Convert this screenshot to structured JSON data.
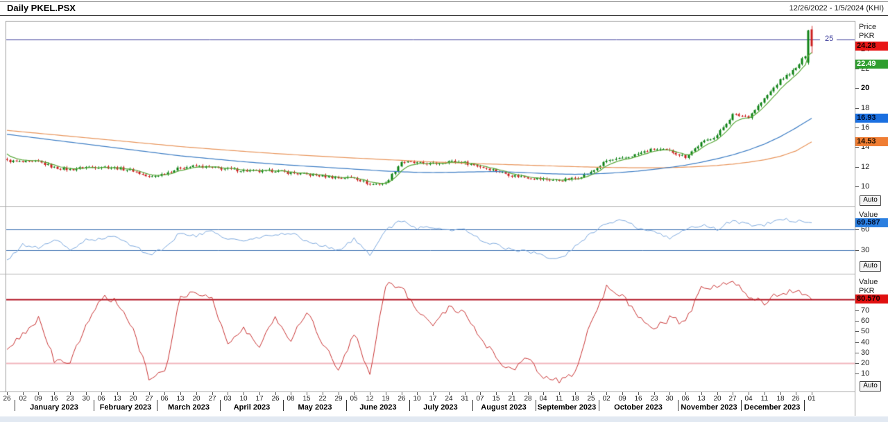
{
  "header": {
    "title": "Daily PKEL.PSX",
    "date_range": "12/26/2022 - 1/5/2024 (KHI)"
  },
  "ui": {
    "auto_label": "Auto"
  },
  "price_panel": {
    "axis_title_1": "Price",
    "axis_title_2": "PKR",
    "ticks": [
      24,
      22,
      20,
      18,
      16,
      14,
      12,
      10
    ],
    "bold_tick": 20,
    "badges": {
      "last": "24.28",
      "fast_ma": "22.49",
      "mid_ma": "16.93",
      "slow_ma": "14.53"
    },
    "hline_label": "25"
  },
  "rsi_panel": {
    "axis_title": "Value",
    "ticks": [
      60,
      30
    ],
    "badge": "69.587"
  },
  "osc_panel": {
    "axis_title_1": "Value",
    "axis_title_2": "PKR",
    "ticks": [
      70,
      60,
      50,
      40,
      30,
      20,
      10
    ],
    "badge": "80.570"
  },
  "x_axis": {
    "days": [
      "26",
      "02",
      "09",
      "16",
      "23",
      "30",
      "06",
      "13",
      "20",
      "27",
      "06",
      "13",
      "20",
      "27",
      "03",
      "10",
      "17",
      "26",
      "08",
      "15",
      "22",
      "29",
      "05",
      "12",
      "19",
      "26",
      "10",
      "17",
      "24",
      "31",
      "07",
      "15",
      "21",
      "28",
      "04",
      "11",
      "18",
      "25",
      "02",
      "09",
      "16",
      "23",
      "30",
      "06",
      "13",
      "20",
      "27",
      "04",
      "11",
      "18",
      "26",
      "01"
    ],
    "months": [
      {
        "label": "January 2023",
        "start": 1,
        "end": 5
      },
      {
        "label": "February 2023",
        "start": 6,
        "end": 9
      },
      {
        "label": "March 2023",
        "start": 10,
        "end": 13
      },
      {
        "label": "April 2023",
        "start": 14,
        "end": 17
      },
      {
        "label": "May 2023",
        "start": 18,
        "end": 21
      },
      {
        "label": "June 2023",
        "start": 22,
        "end": 25
      },
      {
        "label": "July 2023",
        "start": 26,
        "end": 29
      },
      {
        "label": "August 2023",
        "start": 30,
        "end": 33
      },
      {
        "label": "September 2023",
        "start": 34,
        "end": 37
      },
      {
        "label": "October 2023",
        "start": 38,
        "end": 42
      },
      {
        "label": "November 2023",
        "start": 43,
        "end": 46
      },
      {
        "label": "December 2023",
        "start": 47,
        "end": 50
      }
    ]
  },
  "colors": {
    "candle_up": "#0e8215",
    "candle_down": "#cd1f1f",
    "ma_fast": "#58a838",
    "ma_mid": "#3b7cc4",
    "ma_slow": "#e8945a",
    "annotation_line": "#3a3a99",
    "rsi_line": "#7aa7dd",
    "rsi_level": "#3a6fb0",
    "osc_line": "#c83232",
    "osc_level_high": "#b01020",
    "osc_level_low": "#f2b6bd",
    "badge_last_bg": "#e81515",
    "badge_fast_bg": "#2f9e2f",
    "badge_mid_bg": "#1a6fe0",
    "badge_slow_bg": "#ef7d33",
    "badge_rsi_bg": "#2b7fe0",
    "badge_osc_bg": "#e01010"
  },
  "chart_data": {
    "type": "candlestick",
    "title": "Daily PKEL.PSX",
    "timeframe": "Daily",
    "symbol": "PKEL.PSX",
    "date_range": "12/26/2022 - 1/5/2024",
    "bars_per_week": 5,
    "price_ylim": [
      7.9,
      26.9
    ],
    "annotation_level": 25,
    "last_close": 24.28,
    "weekly_labels": [
      "26",
      "02",
      "09",
      "16",
      "23",
      "30",
      "06",
      "13",
      "20",
      "27",
      "06",
      "13",
      "20",
      "27",
      "03",
      "10",
      "17",
      "26",
      "08",
      "15",
      "22",
      "29",
      "05",
      "12",
      "19",
      "26",
      "10",
      "17",
      "24",
      "31",
      "07",
      "15",
      "21",
      "28",
      "04",
      "11",
      "18",
      "25",
      "02",
      "09",
      "16",
      "23",
      "30",
      "06",
      "13",
      "20",
      "27",
      "04",
      "11",
      "18",
      "26",
      "01"
    ],
    "weekly_close": [
      12.6,
      12.45,
      12.5,
      11.9,
      11.7,
      11.95,
      12.0,
      11.85,
      11.6,
      10.9,
      11.3,
      11.9,
      12.05,
      11.9,
      11.75,
      11.6,
      11.5,
      11.6,
      11.35,
      11.2,
      11.05,
      10.85,
      10.9,
      10.2,
      10.3,
      12.5,
      12.35,
      12.3,
      12.55,
      12.4,
      12.0,
      11.6,
      11.1,
      10.9,
      10.7,
      10.6,
      10.8,
      11.4,
      12.6,
      12.8,
      13.3,
      13.8,
      13.6,
      13.0,
      14.4,
      15.2,
      17.3,
      17.1,
      18.9,
      20.8,
      22.0,
      24.28
    ],
    "ma_mid_weekly": [
      15.3,
      15.1,
      14.9,
      14.7,
      14.5,
      14.3,
      14.1,
      13.9,
      13.7,
      13.5,
      13.3,
      13.1,
      12.95,
      12.8,
      12.65,
      12.5,
      12.38,
      12.26,
      12.15,
      12.05,
      11.95,
      11.85,
      11.75,
      11.65,
      11.55,
      11.48,
      11.42,
      11.4,
      11.42,
      11.45,
      11.48,
      11.5,
      11.45,
      11.38,
      11.3,
      11.25,
      11.22,
      11.25,
      11.32,
      11.42,
      11.55,
      11.72,
      11.92,
      12.15,
      12.45,
      12.8,
      13.2,
      13.7,
      14.3,
      15.05,
      15.95,
      16.93
    ],
    "ma_slow_weekly": [
      15.7,
      15.55,
      15.4,
      15.25,
      15.1,
      14.95,
      14.8,
      14.65,
      14.5,
      14.35,
      14.2,
      14.05,
      13.92,
      13.8,
      13.68,
      13.56,
      13.45,
      13.34,
      13.24,
      13.14,
      13.05,
      12.96,
      12.88,
      12.8,
      12.72,
      12.64,
      12.56,
      12.48,
      12.42,
      12.36,
      12.3,
      12.25,
      12.2,
      12.15,
      12.1,
      12.05,
      12.0,
      11.96,
      11.92,
      11.9,
      11.88,
      11.88,
      11.9,
      11.95,
      12.02,
      12.12,
      12.26,
      12.45,
      12.7,
      13.05,
      13.6,
      14.53
    ],
    "ma_fast_last": 22.49,
    "ma_mid_last": 16.93,
    "ma_slow_last": 14.53,
    "final_candles": [
      {
        "o": 22.6,
        "h": 25.95,
        "l": 22.4,
        "c": 25.9
      },
      {
        "o": 26.0,
        "h": 26.35,
        "l": 23.55,
        "c": 24.28
      }
    ],
    "rsi": {
      "ylim": [
        0,
        100
      ],
      "levels": [
        60,
        30
      ],
      "last": 69.587,
      "weekly": [
        14,
        38,
        33,
        46,
        30,
        44,
        46,
        50,
        36,
        24,
        32,
        56,
        50,
        58,
        46,
        43,
        48,
        52,
        55,
        43,
        36,
        30,
        46,
        22,
        60,
        72,
        62,
        64,
        58,
        60,
        45,
        38,
        30,
        28,
        22,
        17,
        35,
        55,
        68,
        73,
        62,
        55,
        48,
        60,
        66,
        60,
        73,
        67,
        66,
        76,
        72,
        69.587
      ]
    },
    "oscillator": {
      "ylim": [
        0,
        100
      ],
      "levels": [
        80.57,
        20
      ],
      "last": 80.57,
      "weekly": [
        30,
        48,
        62,
        22,
        20,
        57,
        83,
        78,
        52,
        6,
        10,
        85,
        86,
        82,
        38,
        52,
        36,
        64,
        42,
        70,
        40,
        14,
        48,
        10,
        95,
        92,
        72,
        55,
        74,
        66,
        45,
        25,
        12,
        25,
        8,
        2,
        10,
        60,
        92,
        84,
        66,
        52,
        62,
        58,
        90,
        94,
        97,
        84,
        78,
        86,
        90,
        80.57
      ]
    }
  }
}
